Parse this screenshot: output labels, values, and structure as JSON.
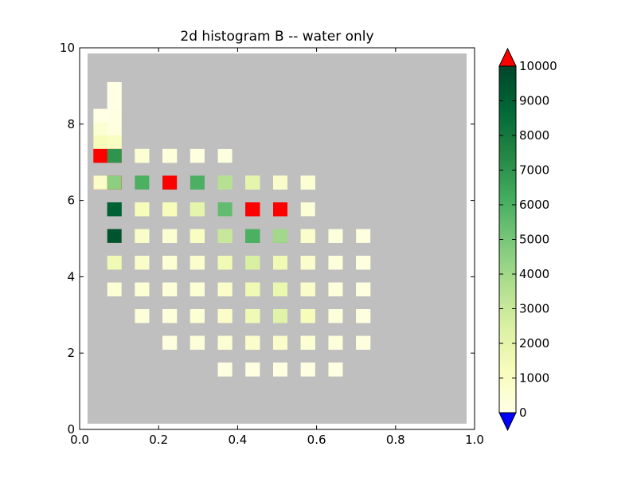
{
  "chart_data": {
    "type": "heatmap",
    "title": "2d histogram B -- water only",
    "xlabel": "",
    "ylabel": "",
    "xlim": [
      0.0,
      1.0
    ],
    "ylim": [
      0,
      10
    ],
    "x_ticks": [
      "0.0",
      "0.2",
      "0.4",
      "0.6",
      "0.8",
      "1.0"
    ],
    "y_ticks": [
      "0",
      "2",
      "4",
      "6",
      "8",
      "10"
    ],
    "bins": {
      "x_start": 0.0,
      "x_step": 0.035,
      "nx": 28,
      "y_start": 0.0,
      "y_step": 0.35,
      "ny": 28
    },
    "grid": false,
    "data_region": {
      "x": [
        0.02,
        0.98
      ],
      "y": [
        0.15,
        9.85
      ]
    },
    "colorbar": {
      "range": [
        0,
        10000
      ],
      "ticks": [
        "0",
        "1000",
        "2000",
        "3000",
        "4000",
        "5000",
        "6000",
        "7000",
        "8000",
        "9000",
        "10000"
      ],
      "extend": "both",
      "under_color": "#0000ff",
      "over_color": "#ff0000",
      "stops": [
        "#ffffe5",
        "#f7fcb9",
        "#d9f0a3",
        "#addd8e",
        "#78c679",
        "#41ab5d",
        "#238443",
        "#006837",
        "#004529"
      ]
    },
    "colors": {
      "bad": "#bfbfbf"
    },
    "cells": [
      [
        0.07,
        9.0,
        5
      ],
      [
        0.1,
        9.0,
        5
      ],
      [
        0.07,
        8.7,
        5
      ],
      [
        0.1,
        8.7,
        5
      ],
      [
        0.04,
        8.3,
        10
      ],
      [
        0.07,
        8.3,
        60
      ],
      [
        0.1,
        8.3,
        80
      ],
      [
        0.04,
        8.0,
        600
      ],
      [
        0.07,
        8.0,
        600
      ],
      [
        0.1,
        8.0,
        200
      ],
      [
        0.04,
        7.6,
        1200
      ],
      [
        0.07,
        7.6,
        1500
      ],
      [
        0.1,
        7.6,
        1000
      ],
      [
        0.04,
        7.3,
        10500
      ],
      [
        0.07,
        7.3,
        11000
      ],
      [
        0.1,
        7.3,
        800
      ],
      [
        0.14,
        7.3,
        100
      ],
      [
        0.17,
        7.3,
        100
      ],
      [
        0.21,
        7.3,
        100
      ],
      [
        0.24,
        7.3,
        100
      ],
      [
        0.04,
        7.0,
        12000
      ],
      [
        0.07,
        7.0,
        11000
      ],
      [
        0.1,
        7.0,
        7000
      ],
      [
        0.14,
        7.0,
        1000
      ],
      [
        0.17,
        7.0,
        500
      ],
      [
        0.21,
        7.0,
        400
      ],
      [
        0.24,
        7.0,
        300
      ],
      [
        0.28,
        7.0,
        200
      ],
      [
        0.31,
        7.0,
        200
      ],
      [
        0.35,
        7.0,
        200
      ],
      [
        0.04,
        6.6,
        11000
      ],
      [
        0.07,
        6.6,
        11000
      ],
      [
        0.1,
        6.6,
        10500
      ],
      [
        0.14,
        6.6,
        10500
      ],
      [
        0.17,
        6.6,
        7500
      ],
      [
        0.21,
        6.6,
        3500
      ],
      [
        0.24,
        6.6,
        1500
      ],
      [
        0.28,
        6.6,
        800
      ],
      [
        0.31,
        6.6,
        500
      ],
      [
        0.35,
        6.6,
        400
      ],
      [
        0.38,
        6.6,
        300
      ],
      [
        0.42,
        6.6,
        300
      ],
      [
        0.45,
        6.6,
        300
      ],
      [
        0.49,
        6.6,
        250
      ],
      [
        0.52,
        6.6,
        200
      ],
      [
        0.56,
        6.6,
        200
      ],
      [
        0.59,
        6.6,
        200
      ],
      [
        0.04,
        6.3,
        800
      ],
      [
        0.07,
        6.3,
        11000
      ],
      [
        0.1,
        6.3,
        4500
      ],
      [
        0.14,
        6.3,
        1800
      ],
      [
        0.17,
        6.3,
        6000
      ],
      [
        0.21,
        6.3,
        9500
      ],
      [
        0.24,
        6.3,
        11000
      ],
      [
        0.28,
        6.3,
        7000
      ],
      [
        0.31,
        6.3,
        6000
      ],
      [
        0.35,
        6.3,
        4500
      ],
      [
        0.38,
        6.3,
        3500
      ],
      [
        0.42,
        6.3,
        2500
      ],
      [
        0.45,
        6.3,
        2000
      ],
      [
        0.49,
        6.3,
        1500
      ],
      [
        0.52,
        6.3,
        800
      ],
      [
        0.56,
        6.3,
        500
      ],
      [
        0.59,
        6.3,
        500
      ],
      [
        0.07,
        5.9,
        11000
      ],
      [
        0.1,
        5.9,
        6000
      ],
      [
        0.14,
        5.9,
        1500
      ],
      [
        0.17,
        5.9,
        1500
      ],
      [
        0.21,
        5.9,
        1500
      ],
      [
        0.24,
        5.9,
        1500
      ],
      [
        0.28,
        5.9,
        1800
      ],
      [
        0.31,
        5.9,
        2500
      ],
      [
        0.35,
        5.9,
        3000
      ],
      [
        0.38,
        5.9,
        5000
      ],
      [
        0.42,
        5.9,
        7000
      ],
      [
        0.45,
        5.9,
        9500
      ],
      [
        0.49,
        5.9,
        11000
      ],
      [
        0.52,
        5.9,
        9000
      ],
      [
        0.56,
        5.9,
        5500
      ],
      [
        0.59,
        5.9,
        800
      ],
      [
        0.07,
        5.6,
        7000
      ],
      [
        0.1,
        5.6,
        9000
      ],
      [
        0.14,
        5.6,
        2000
      ],
      [
        0.17,
        5.6,
        1200
      ],
      [
        0.21,
        5.6,
        1200
      ],
      [
        0.24,
        5.6,
        1200
      ],
      [
        0.28,
        5.6,
        1500
      ],
      [
        0.31,
        5.6,
        2000
      ],
      [
        0.35,
        5.6,
        3000
      ],
      [
        0.38,
        5.6,
        5500
      ],
      [
        0.42,
        5.6,
        11000
      ],
      [
        0.45,
        5.6,
        11000
      ],
      [
        0.49,
        5.6,
        11000
      ],
      [
        0.52,
        5.6,
        11000
      ],
      [
        0.56,
        5.6,
        4500
      ],
      [
        0.59,
        5.6,
        400
      ],
      [
        0.07,
        5.2,
        1500
      ],
      [
        0.1,
        5.2,
        11000
      ],
      [
        0.14,
        5.2,
        1500
      ],
      [
        0.17,
        5.2,
        1000
      ],
      [
        0.21,
        5.2,
        800
      ],
      [
        0.24,
        5.2,
        800
      ],
      [
        0.28,
        5.2,
        1000
      ],
      [
        0.31,
        5.2,
        1500
      ],
      [
        0.35,
        5.2,
        2500
      ],
      [
        0.38,
        5.2,
        4000
      ],
      [
        0.42,
        5.2,
        8000
      ],
      [
        0.45,
        5.2,
        9000
      ],
      [
        0.49,
        5.2,
        7500
      ],
      [
        0.52,
        5.2,
        4000
      ],
      [
        0.56,
        5.2,
        2000
      ],
      [
        0.59,
        5.2,
        600
      ],
      [
        0.63,
        5.2,
        300
      ],
      [
        0.66,
        5.2,
        200
      ],
      [
        0.07,
        4.9,
        500
      ],
      [
        0.1,
        4.9,
        9500
      ],
      [
        0.14,
        4.9,
        1800
      ],
      [
        0.17,
        4.9,
        800
      ],
      [
        0.21,
        4.9,
        600
      ],
      [
        0.24,
        4.9,
        600
      ],
      [
        0.28,
        4.9,
        700
      ],
      [
        0.31,
        4.9,
        1000
      ],
      [
        0.35,
        4.9,
        1800
      ],
      [
        0.38,
        4.9,
        3000
      ],
      [
        0.42,
        4.9,
        5000
      ],
      [
        0.45,
        4.9,
        6000
      ],
      [
        0.49,
        4.9,
        6500
      ],
      [
        0.52,
        4.9,
        4000
      ],
      [
        0.56,
        4.9,
        2000
      ],
      [
        0.59,
        4.9,
        700
      ],
      [
        0.63,
        4.9,
        300
      ],
      [
        0.66,
        4.9,
        250
      ],
      [
        0.7,
        4.9,
        200
      ],
      [
        0.1,
        4.5,
        3000
      ],
      [
        0.14,
        4.5,
        1500
      ],
      [
        0.17,
        4.5,
        800
      ],
      [
        0.21,
        4.5,
        500
      ],
      [
        0.24,
        4.5,
        500
      ],
      [
        0.28,
        4.5,
        600
      ],
      [
        0.31,
        4.5,
        800
      ],
      [
        0.35,
        4.5,
        1200
      ],
      [
        0.38,
        4.5,
        2000
      ],
      [
        0.42,
        4.5,
        3000
      ],
      [
        0.45,
        4.5,
        4000
      ],
      [
        0.49,
        4.5,
        3500
      ],
      [
        0.52,
        4.5,
        2500
      ],
      [
        0.56,
        4.5,
        1500
      ],
      [
        0.59,
        4.5,
        800
      ],
      [
        0.63,
        4.5,
        400
      ],
      [
        0.66,
        4.5,
        300
      ],
      [
        0.7,
        4.5,
        200
      ],
      [
        0.1,
        4.2,
        1500
      ],
      [
        0.14,
        4.2,
        1800
      ],
      [
        0.17,
        4.2,
        800
      ],
      [
        0.21,
        4.2,
        500
      ],
      [
        0.24,
        4.2,
        500
      ],
      [
        0.28,
        4.2,
        500
      ],
      [
        0.31,
        4.2,
        700
      ],
      [
        0.35,
        4.2,
        1000
      ],
      [
        0.38,
        4.2,
        1500
      ],
      [
        0.42,
        4.2,
        2000
      ],
      [
        0.45,
        4.2,
        2500
      ],
      [
        0.49,
        4.2,
        2000
      ],
      [
        0.52,
        4.2,
        1500
      ],
      [
        0.56,
        4.2,
        1000
      ],
      [
        0.59,
        4.2,
        700
      ],
      [
        0.63,
        4.2,
        400
      ],
      [
        0.66,
        4.2,
        300
      ],
      [
        0.7,
        4.2,
        200
      ],
      [
        0.1,
        3.8,
        500
      ],
      [
        0.14,
        3.8,
        1000
      ],
      [
        0.17,
        3.8,
        700
      ],
      [
        0.21,
        3.8,
        500
      ],
      [
        0.24,
        3.8,
        400
      ],
      [
        0.28,
        3.8,
        400
      ],
      [
        0.31,
        3.8,
        500
      ],
      [
        0.35,
        3.8,
        700
      ],
      [
        0.38,
        3.8,
        1000
      ],
      [
        0.42,
        3.8,
        1500
      ],
      [
        0.45,
        3.8,
        1500
      ],
      [
        0.49,
        3.8,
        1500
      ],
      [
        0.52,
        3.8,
        1200
      ],
      [
        0.56,
        3.8,
        800
      ],
      [
        0.59,
        3.8,
        600
      ],
      [
        0.63,
        3.8,
        400
      ],
      [
        0.66,
        3.8,
        300
      ],
      [
        0.7,
        3.8,
        200
      ],
      [
        0.14,
        3.5,
        600
      ],
      [
        0.17,
        3.5,
        500
      ],
      [
        0.21,
        3.5,
        400
      ],
      [
        0.24,
        3.5,
        400
      ],
      [
        0.28,
        3.5,
        400
      ],
      [
        0.31,
        3.5,
        500
      ],
      [
        0.35,
        3.5,
        600
      ],
      [
        0.38,
        3.5,
        800
      ],
      [
        0.42,
        3.5,
        1200
      ],
      [
        0.45,
        3.5,
        1500
      ],
      [
        0.49,
        3.5,
        1800
      ],
      [
        0.52,
        3.5,
        1800
      ],
      [
        0.56,
        3.5,
        1200
      ],
      [
        0.59,
        3.5,
        800
      ],
      [
        0.63,
        3.5,
        500
      ],
      [
        0.66,
        3.5,
        300
      ],
      [
        0.7,
        3.5,
        200
      ],
      [
        0.17,
        3.1,
        400
      ],
      [
        0.21,
        3.1,
        400
      ],
      [
        0.24,
        3.1,
        400
      ],
      [
        0.28,
        3.1,
        400
      ],
      [
        0.31,
        3.1,
        500
      ],
      [
        0.35,
        3.1,
        600
      ],
      [
        0.38,
        3.1,
        800
      ],
      [
        0.42,
        3.1,
        1200
      ],
      [
        0.45,
        3.1,
        1500
      ],
      [
        0.49,
        3.1,
        2000
      ],
      [
        0.52,
        3.1,
        2000
      ],
      [
        0.56,
        3.1,
        1500
      ],
      [
        0.59,
        3.1,
        1000
      ],
      [
        0.63,
        3.1,
        500
      ],
      [
        0.66,
        3.1,
        300
      ],
      [
        0.7,
        3.1,
        200
      ],
      [
        0.17,
        2.8,
        300
      ],
      [
        0.21,
        2.8,
        300
      ],
      [
        0.24,
        2.8,
        300
      ],
      [
        0.28,
        2.8,
        400
      ],
      [
        0.31,
        2.8,
        500
      ],
      [
        0.35,
        2.8,
        600
      ],
      [
        0.38,
        2.8,
        800
      ],
      [
        0.42,
        2.8,
        1000
      ],
      [
        0.45,
        2.8,
        1500
      ],
      [
        0.49,
        2.8,
        2000
      ],
      [
        0.52,
        2.8,
        2200
      ],
      [
        0.56,
        2.8,
        1800
      ],
      [
        0.59,
        2.8,
        1200
      ],
      [
        0.63,
        2.8,
        500
      ],
      [
        0.66,
        2.8,
        300
      ],
      [
        0.7,
        2.8,
        200
      ],
      [
        0.21,
        2.4,
        300
      ],
      [
        0.24,
        2.4,
        300
      ],
      [
        0.28,
        2.4,
        300
      ],
      [
        0.31,
        2.4,
        400
      ],
      [
        0.35,
        2.4,
        500
      ],
      [
        0.38,
        2.4,
        700
      ],
      [
        0.42,
        2.4,
        900
      ],
      [
        0.45,
        2.4,
        1200
      ],
      [
        0.49,
        2.4,
        1500
      ],
      [
        0.52,
        2.4,
        1800
      ],
      [
        0.56,
        2.4,
        1500
      ],
      [
        0.59,
        2.4,
        1200
      ],
      [
        0.63,
        2.4,
        500
      ],
      [
        0.66,
        2.4,
        300
      ],
      [
        0.7,
        2.4,
        200
      ],
      [
        0.24,
        2.1,
        200
      ],
      [
        0.28,
        2.1,
        250
      ],
      [
        0.31,
        2.1,
        300
      ],
      [
        0.35,
        2.1,
        400
      ],
      [
        0.38,
        2.1,
        500
      ],
      [
        0.42,
        2.1,
        600
      ],
      [
        0.45,
        2.1,
        700
      ],
      [
        0.49,
        2.1,
        800
      ],
      [
        0.52,
        2.1,
        800
      ],
      [
        0.56,
        2.1,
        700
      ],
      [
        0.59,
        2.1,
        500
      ],
      [
        0.63,
        2.1,
        400
      ],
      [
        0.66,
        2.1,
        300
      ],
      [
        0.7,
        2.1,
        200
      ],
      [
        0.35,
        1.7,
        150
      ],
      [
        0.38,
        1.7,
        150
      ],
      [
        0.42,
        1.7,
        150
      ],
      [
        0.45,
        1.7,
        150
      ],
      [
        0.49,
        1.7,
        150
      ],
      [
        0.52,
        1.7,
        150
      ],
      [
        0.56,
        1.7,
        150
      ],
      [
        0.59,
        1.7,
        150
      ],
      [
        0.63,
        1.7,
        150
      ],
      [
        0.66,
        1.7,
        150
      ]
    ]
  }
}
